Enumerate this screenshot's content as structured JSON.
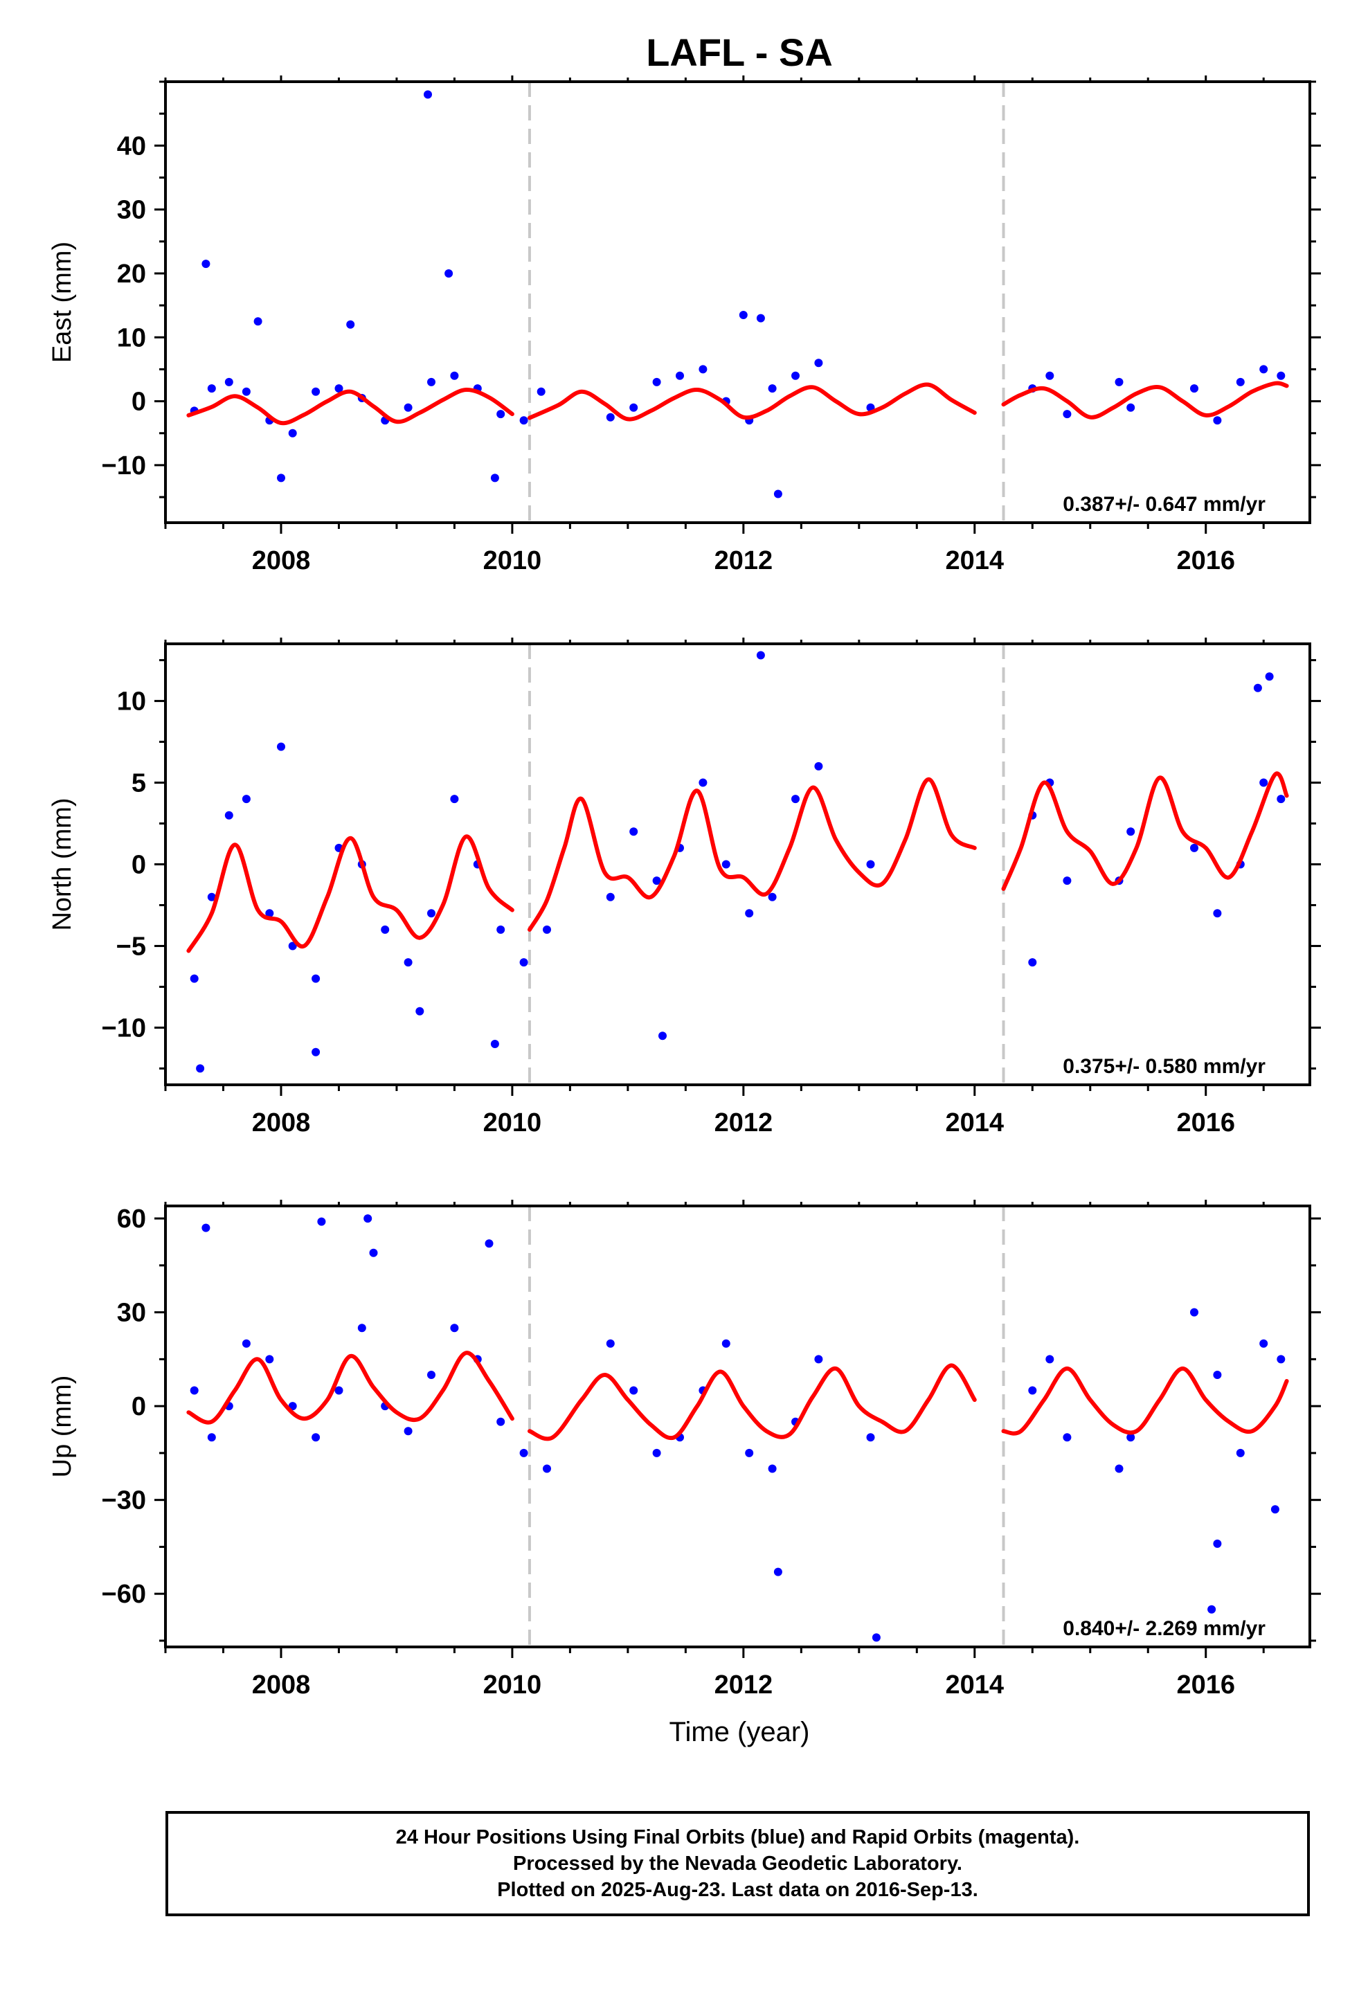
{
  "figure": {
    "title": "LAFL - SA",
    "xlabel": "Time (year)",
    "footer": [
      "24 Hour Positions Using Final Orbits (blue) and Rapid Orbits (magenta).",
      "Processed by the Nevada Geodetic Laboratory.",
      "Plotted on 2025-Aug-23. Last data on 2016-Sep-13."
    ]
  },
  "colors": {
    "points": "#0000ff",
    "model": "#ff0000",
    "steps": "#c8c8c8",
    "frame": "#000000"
  },
  "chart_data": [
    {
      "type": "scatter",
      "ylabel": "East (mm)",
      "xlim": [
        2007.0,
        2016.9
      ],
      "ylim": [
        -19,
        50
      ],
      "xticks": [
        2008,
        2010,
        2012,
        2014,
        2016
      ],
      "yticks": [
        -10,
        0,
        10,
        20,
        30,
        40
      ],
      "rate": "0.387+/- 0.647 mm/yr",
      "steps": [
        2010.15,
        2014.25
      ],
      "model": {
        "x": [
          2007.2,
          2007.4,
          2007.6,
          2007.8,
          2008.0,
          2008.2,
          2008.4,
          2008.6,
          2008.8,
          2009.0,
          2009.2,
          2009.4,
          2009.6,
          2009.8,
          2010.0,
          2010.15,
          2010.4,
          2010.6,
          2010.8,
          2011.0,
          2011.2,
          2011.4,
          2011.6,
          2011.8,
          2012.0,
          2012.2,
          2012.4,
          2012.6,
          2012.8,
          2013.0,
          2013.2,
          2013.4,
          2013.6,
          2013.8,
          2014.0,
          2014.25,
          2014.4,
          2014.6,
          2014.8,
          2015.0,
          2015.2,
          2015.4,
          2015.6,
          2015.8,
          2016.0,
          2016.2,
          2016.4,
          2016.6,
          2016.7
        ],
        "y": [
          -2.2,
          -0.9,
          0.8,
          -1.0,
          -3.4,
          -2.1,
          0.0,
          1.5,
          -0.8,
          -3.2,
          -1.8,
          0.2,
          1.8,
          0.6,
          -2.0,
          -2.6,
          -0.6,
          1.5,
          -0.4,
          -2.8,
          -1.5,
          0.5,
          1.8,
          0.2,
          -2.5,
          -1.5,
          0.8,
          2.2,
          0.0,
          -2.0,
          -1.0,
          1.2,
          2.6,
          0.2,
          -1.8,
          -0.5,
          1.0,
          2.0,
          0.0,
          -2.5,
          -1.0,
          1.2,
          2.2,
          0.0,
          -2.2,
          -0.8,
          1.5,
          2.8,
          2.4
        ]
      },
      "points": {
        "x": [
          2007.25,
          2007.4,
          2007.55,
          2007.7,
          2007.9,
          2008.1,
          2008.3,
          2008.5,
          2008.7,
          2008.9,
          2009.1,
          2009.3,
          2009.5,
          2009.7,
          2009.9,
          2010.1,
          2010.25,
          2010.85,
          2011.05,
          2011.25,
          2011.45,
          2011.65,
          2011.85,
          2012.05,
          2012.25,
          2012.45,
          2012.65,
          2013.1,
          2014.5,
          2014.65,
          2014.8,
          2015.25,
          2015.35,
          2015.9,
          2016.1,
          2016.3,
          2016.5,
          2016.65,
          2007.35,
          2007.8,
          2008.0,
          2008.6,
          2009.27,
          2009.45,
          2009.85,
          2012.0,
          2012.15,
          2012.3
        ],
        "y": [
          -1.5,
          2.0,
          3.0,
          1.5,
          -3.0,
          -5.0,
          1.5,
          2.0,
          0.5,
          -3.0,
          -1.0,
          3.0,
          4.0,
          2.0,
          -2.0,
          -3.0,
          1.5,
          -2.5,
          -1.0,
          3.0,
          4.0,
          5.0,
          0.0,
          -3.0,
          2.0,
          4.0,
          6.0,
          -1.0,
          2.0,
          4.0,
          -2.0,
          3.0,
          -1.0,
          2.0,
          -3.0,
          3.0,
          5.0,
          4.0,
          21.5,
          12.5,
          -12.0,
          12.0,
          48.0,
          20.0,
          -12.0,
          13.5,
          13.0,
          -14.5
        ]
      }
    },
    {
      "type": "scatter",
      "ylabel": "North (mm)",
      "xlim": [
        2007.0,
        2016.9
      ],
      "ylim": [
        -13.5,
        13.5
      ],
      "xticks": [
        2008,
        2010,
        2012,
        2014,
        2016
      ],
      "yticks": [
        -10,
        -5,
        0,
        5,
        10
      ],
      "rate": "0.375+/- 0.580 mm/yr",
      "steps": [
        2010.15,
        2014.25
      ],
      "model": {
        "x": [
          2007.2,
          2007.4,
          2007.6,
          2007.8,
          2008.0,
          2008.2,
          2008.4,
          2008.6,
          2008.8,
          2009.0,
          2009.2,
          2009.4,
          2009.6,
          2009.8,
          2010.0,
          2010.15,
          2010.3,
          2010.45,
          2010.6,
          2010.8,
          2011.0,
          2011.2,
          2011.4,
          2011.6,
          2011.8,
          2012.0,
          2012.2,
          2012.4,
          2012.6,
          2012.8,
          2013.0,
          2013.2,
          2013.4,
          2013.6,
          2013.8,
          2014.0,
          2014.25,
          2014.4,
          2014.6,
          2014.8,
          2015.0,
          2015.2,
          2015.4,
          2015.6,
          2015.8,
          2016.0,
          2016.2,
          2016.4,
          2016.6,
          2016.7
        ],
        "y": [
          -5.3,
          -3.0,
          1.2,
          -2.8,
          -3.5,
          -5.0,
          -2.0,
          1.6,
          -2.0,
          -2.8,
          -4.5,
          -2.5,
          1.7,
          -1.5,
          -2.8,
          -4.0,
          -2.2,
          1.0,
          4.0,
          -0.5,
          -0.8,
          -2.0,
          0.5,
          4.5,
          -0.3,
          -0.8,
          -1.8,
          1.0,
          4.7,
          1.5,
          -0.5,
          -1.2,
          1.5,
          5.2,
          1.8,
          1.0,
          -1.5,
          1.0,
          5.0,
          2.0,
          0.8,
          -1.2,
          1.0,
          5.3,
          2.0,
          1.0,
          -0.8,
          2.0,
          5.5,
          4.2
        ]
      },
      "points": {
        "x": [
          2007.25,
          2007.4,
          2007.55,
          2007.7,
          2007.9,
          2008.1,
          2008.3,
          2008.5,
          2008.7,
          2008.9,
          2009.1,
          2009.3,
          2009.5,
          2009.7,
          2009.9,
          2010.1,
          2010.3,
          2010.85,
          2011.05,
          2011.25,
          2011.45,
          2011.65,
          2011.85,
          2012.05,
          2012.25,
          2012.45,
          2012.65,
          2013.1,
          2014.5,
          2014.65,
          2014.8,
          2015.25,
          2015.35,
          2015.9,
          2016.1,
          2016.3,
          2016.5,
          2016.65,
          2007.3,
          2008.0,
          2008.3,
          2009.2,
          2009.85,
          2011.3,
          2012.15,
          2016.55,
          2016.45,
          2014.5
        ],
        "y": [
          -7.0,
          -2.0,
          3.0,
          4.0,
          -3.0,
          -5.0,
          -7.0,
          1.0,
          0.0,
          -4.0,
          -6.0,
          -3.0,
          4.0,
          0.0,
          -4.0,
          -6.0,
          -4.0,
          -2.0,
          2.0,
          -1.0,
          1.0,
          5.0,
          0.0,
          -3.0,
          -2.0,
          4.0,
          6.0,
          0.0,
          3.0,
          5.0,
          -1.0,
          -1.0,
          2.0,
          1.0,
          -3.0,
          0.0,
          5.0,
          4.0,
          -12.5,
          7.2,
          -11.5,
          -9.0,
          -11.0,
          -10.5,
          12.8,
          11.5,
          10.8,
          -6.0
        ]
      }
    },
    {
      "type": "scatter",
      "ylabel": "Up (mm)",
      "xlim": [
        2007.0,
        2016.9
      ],
      "ylim": [
        -77,
        64
      ],
      "xticks": [
        2008,
        2010,
        2012,
        2014,
        2016
      ],
      "yticks": [
        -60,
        -30,
        0,
        30,
        60
      ],
      "rate": "0.840+/- 2.269 mm/yr",
      "steps": [
        2010.15,
        2014.25
      ],
      "model": {
        "x": [
          2007.2,
          2007.4,
          2007.6,
          2007.8,
          2008.0,
          2008.2,
          2008.4,
          2008.6,
          2008.8,
          2009.0,
          2009.2,
          2009.4,
          2009.6,
          2009.8,
          2010.0,
          2010.15,
          2010.35,
          2010.6,
          2010.8,
          2011.0,
          2011.2,
          2011.4,
          2011.6,
          2011.8,
          2012.0,
          2012.2,
          2012.4,
          2012.6,
          2012.8,
          2013.0,
          2013.2,
          2013.4,
          2013.6,
          2013.8,
          2014.0,
          2014.25,
          2014.4,
          2014.6,
          2014.8,
          2015.0,
          2015.2,
          2015.4,
          2015.6,
          2015.8,
          2016.0,
          2016.2,
          2016.4,
          2016.6,
          2016.7
        ],
        "y": [
          -2.0,
          -5.0,
          5.0,
          15.0,
          2.0,
          -4.0,
          2.0,
          16.0,
          6.0,
          -2.0,
          -4.0,
          5.0,
          17.0,
          8.0,
          -4.0,
          -8.0,
          -10.0,
          2.0,
          10.0,
          2.0,
          -6.0,
          -10.0,
          0.0,
          11.0,
          0.0,
          -8.0,
          -9.0,
          3.0,
          12.0,
          0.0,
          -5.0,
          -8.0,
          2.0,
          13.0,
          2.0,
          -8.0,
          -8.0,
          2.0,
          12.0,
          2.0,
          -6.0,
          -8.0,
          2.0,
          12.0,
          2.0,
          -5.0,
          -8.0,
          0.0,
          8.0
        ]
      },
      "points": {
        "x": [
          2007.25,
          2007.4,
          2007.55,
          2007.7,
          2007.9,
          2008.1,
          2008.3,
          2008.5,
          2008.7,
          2008.9,
          2009.1,
          2009.3,
          2009.5,
          2009.7,
          2009.9,
          2010.1,
          2010.3,
          2010.85,
          2011.05,
          2011.25,
          2011.45,
          2011.65,
          2011.85,
          2012.05,
          2012.25,
          2012.45,
          2012.65,
          2013.1,
          2014.5,
          2014.65,
          2014.8,
          2015.25,
          2015.35,
          2015.9,
          2016.1,
          2016.3,
          2016.5,
          2016.65,
          2007.35,
          2008.35,
          2008.75,
          2008.8,
          2009.8,
          2012.3,
          2013.15,
          2016.05,
          2016.1,
          2016.6
        ],
        "y": [
          5.0,
          -10.0,
          0.0,
          20.0,
          15.0,
          0.0,
          -10.0,
          5.0,
          25.0,
          0.0,
          -8.0,
          10.0,
          25.0,
          15.0,
          -5.0,
          -15.0,
          -20.0,
          20.0,
          5.0,
          -15.0,
          -10.0,
          5.0,
          20.0,
          -15.0,
          -20.0,
          -5.0,
          15.0,
          -10.0,
          5.0,
          15.0,
          -10.0,
          -20.0,
          -10.0,
          30.0,
          10.0,
          -15.0,
          20.0,
          15.0,
          57.0,
          59.0,
          60.0,
          49.0,
          52.0,
          -53.0,
          -74.0,
          -65.0,
          -44.0,
          -33.0
        ]
      }
    }
  ]
}
